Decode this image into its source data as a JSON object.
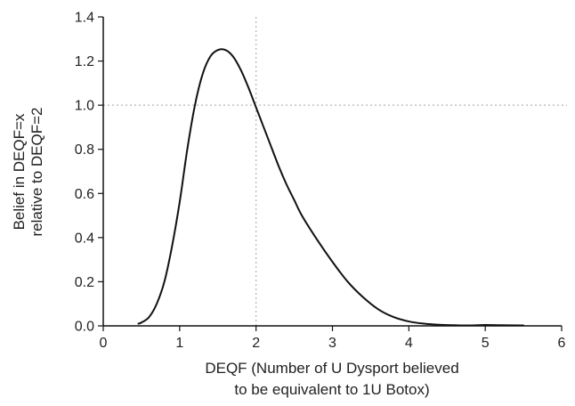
{
  "chart_data": {
    "type": "line",
    "xlabel_lines": [
      "DEQF (Number of U Dysport believed",
      "to be equivalent to 1U Botox)"
    ],
    "ylabel_lines": [
      "Belief in DEQF=x",
      "relative to DEQF=2"
    ],
    "xlim": [
      0,
      6
    ],
    "ylim": [
      0,
      1.4
    ],
    "x_ticks": [
      0,
      1,
      2,
      3,
      4,
      5,
      6
    ],
    "y_ticks": [
      0.0,
      0.2,
      0.4,
      0.6,
      0.8,
      1.0,
      1.2,
      1.4
    ],
    "x_tick_labels": [
      "0",
      "1",
      "2",
      "3",
      "4",
      "5",
      "6"
    ],
    "y_tick_labels": [
      "0.0",
      "0.2",
      "0.4",
      "0.6",
      "0.8",
      "1.0",
      "1.2",
      "1.4"
    ],
    "reference_lines": {
      "x": 2,
      "y": 1.0
    },
    "line_color": "#111111",
    "reference_color": "#b3b3b3",
    "series": [
      {
        "x": [
          0.46,
          0.5,
          0.6,
          0.7,
          0.8,
          0.9,
          1.0,
          1.1,
          1.2,
          1.3,
          1.4,
          1.5,
          1.6,
          1.7,
          1.8,
          1.9,
          2.0,
          2.1,
          2.2,
          2.3,
          2.4,
          2.5,
          2.6,
          2.8,
          3.0,
          3.2,
          3.4,
          3.6,
          3.8,
          4.0,
          4.2,
          4.4,
          4.6,
          4.8,
          5.0,
          5.2,
          5.5
        ],
        "y": [
          0.01,
          0.015,
          0.04,
          0.1,
          0.2,
          0.36,
          0.56,
          0.8,
          1.0,
          1.14,
          1.22,
          1.25,
          1.25,
          1.22,
          1.16,
          1.08,
          0.99,
          0.9,
          0.81,
          0.72,
          0.64,
          0.57,
          0.5,
          0.39,
          0.29,
          0.2,
          0.13,
          0.075,
          0.04,
          0.02,
          0.01,
          0.005,
          0.003,
          0.002,
          0.004,
          0.003,
          0.002
        ]
      }
    ]
  }
}
